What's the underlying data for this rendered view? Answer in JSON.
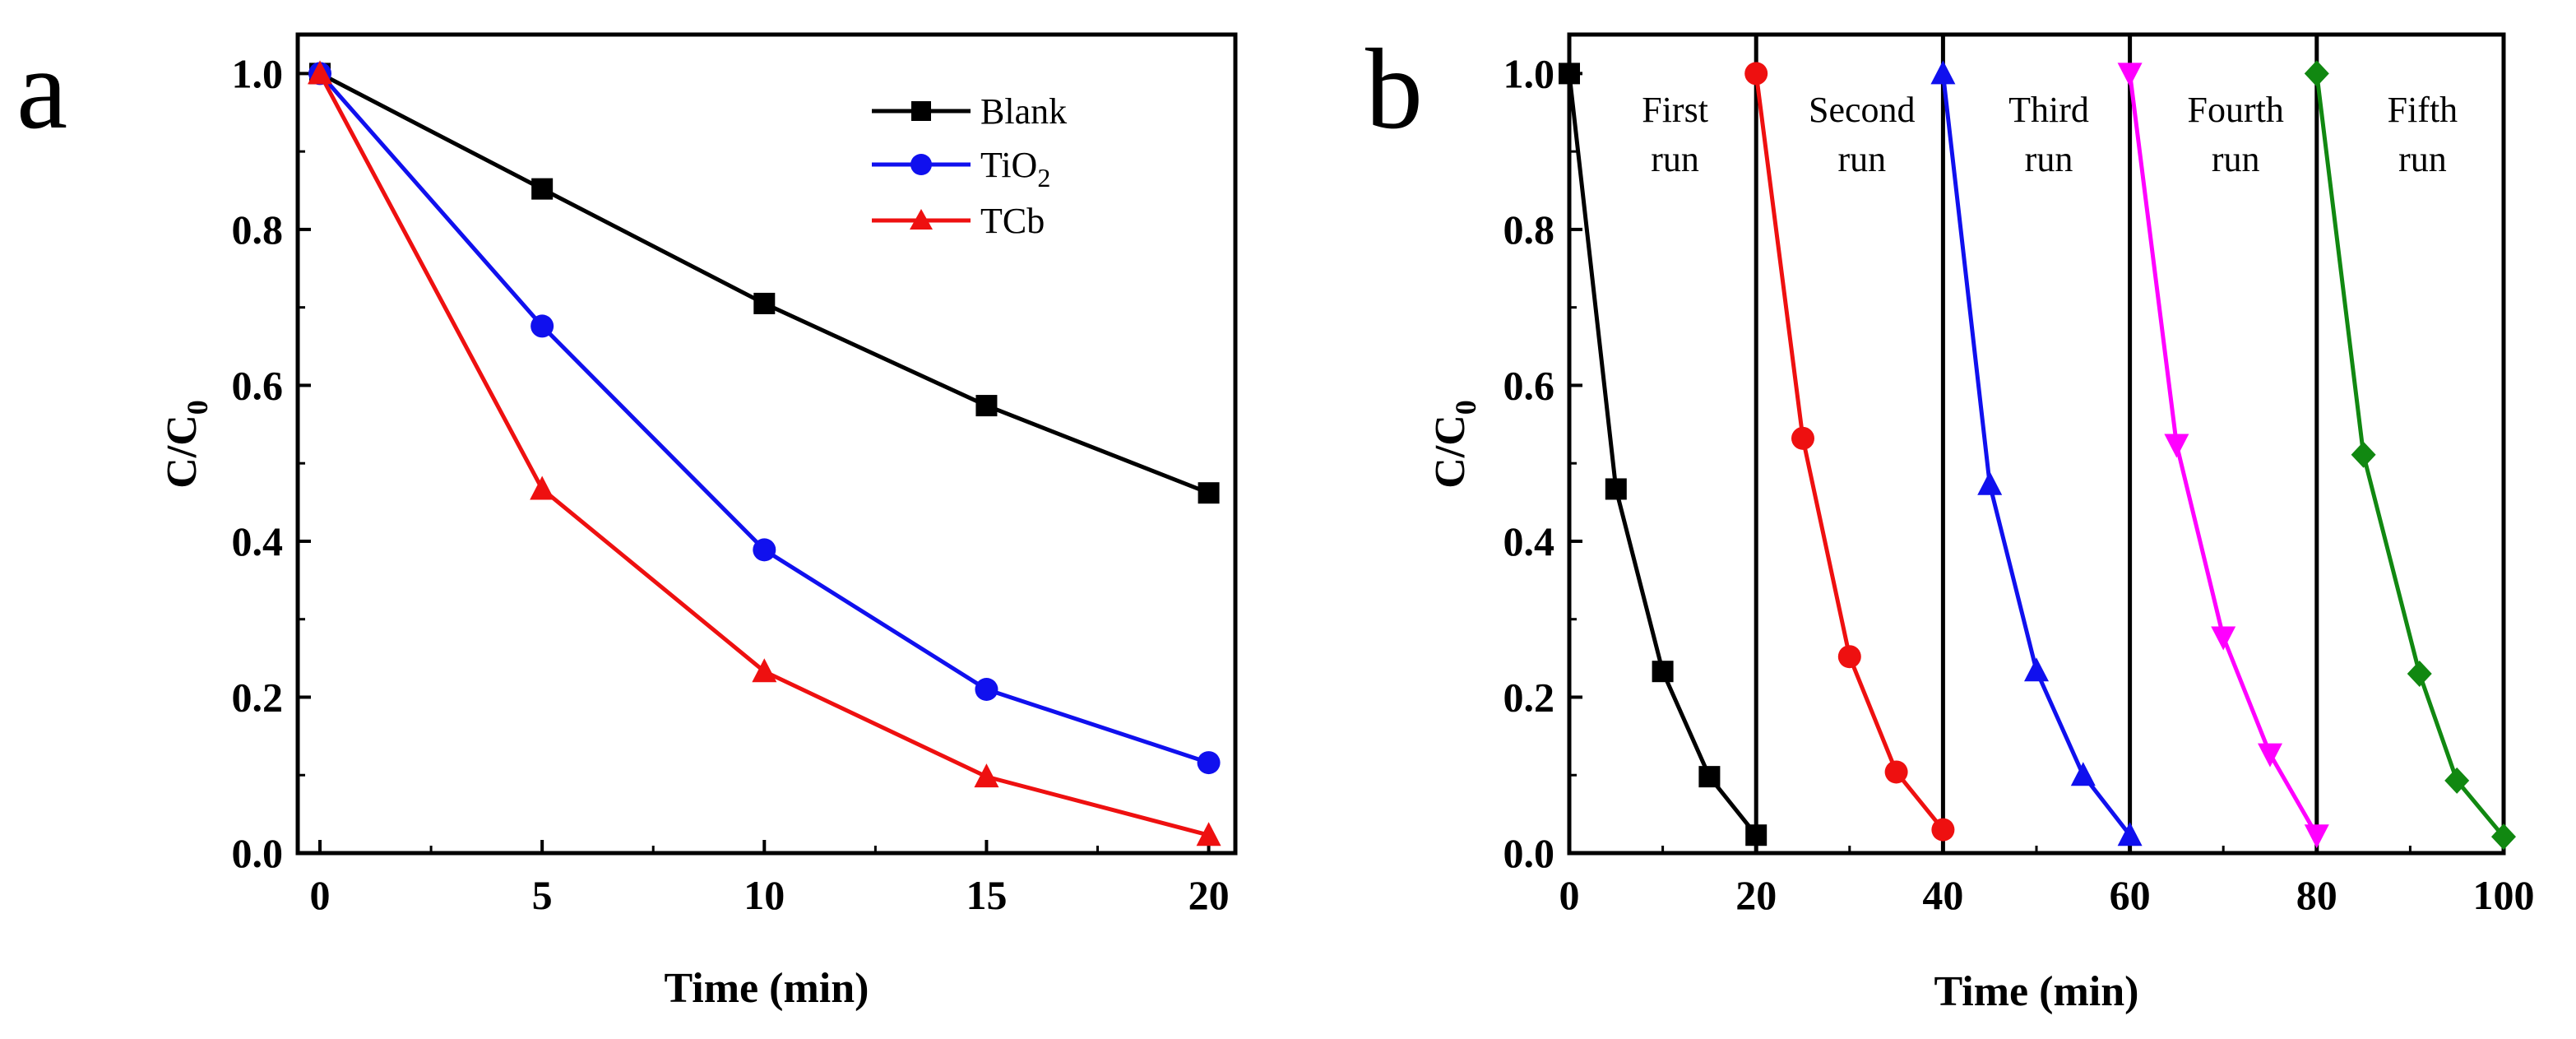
{
  "chart_data": [
    {
      "panel_label": "a",
      "type": "line",
      "xlabel": "Time (min)",
      "ylabel": "C/C0",
      "ylabel_main": "C/C",
      "ylabel_sub": "0",
      "xlim": [
        -0.5,
        20.6
      ],
      "ylim": [
        0.0,
        1.05
      ],
      "xticks": [
        0,
        5,
        10,
        15,
        20
      ],
      "xtick_labels": [
        "0",
        "5",
        "10",
        "15",
        "20"
      ],
      "yticks": [
        0.0,
        0.2,
        0.4,
        0.6,
        0.8,
        1.0
      ],
      "ytick_labels": [
        "0.0",
        "0.2",
        "0.4",
        "0.6",
        "0.8",
        "1.0"
      ],
      "legend_position": "top-right",
      "series": [
        {
          "name": "Blank",
          "label_main": "Blank",
          "label_sub": "",
          "color": "#000000",
          "marker": "square",
          "x": [
            0,
            5,
            10,
            15,
            20
          ],
          "y": [
            1.0,
            0.852,
            0.705,
            0.574,
            0.462
          ]
        },
        {
          "name": "TiO2",
          "label_main": "TiO",
          "label_sub": "2",
          "color": "#1010ee",
          "marker": "circle",
          "x": [
            0,
            5,
            10,
            15,
            20
          ],
          "y": [
            1.0,
            0.676,
            0.389,
            0.21,
            0.116
          ]
        },
        {
          "name": "TCb",
          "label_main": "TCb",
          "label_sub": "",
          "color": "#ee1010",
          "marker": "triangle-up",
          "x": [
            0,
            5,
            10,
            15,
            20
          ],
          "y": [
            1.0,
            0.467,
            0.233,
            0.098,
            0.023
          ]
        }
      ]
    },
    {
      "panel_label": "b",
      "type": "line",
      "xlabel": "Time (min)",
      "ylabel": "C/C0",
      "ylabel_main": "C/C",
      "ylabel_sub": "0",
      "xlim": [
        0,
        100
      ],
      "ylim": [
        0.0,
        1.05
      ],
      "xticks": [
        0,
        20,
        40,
        60,
        80,
        100
      ],
      "xtick_labels": [
        "0",
        "20",
        "40",
        "60",
        "80",
        "100"
      ],
      "yticks": [
        0.0,
        0.2,
        0.4,
        0.6,
        0.8,
        1.0
      ],
      "ytick_labels": [
        "0.0",
        "0.2",
        "0.4",
        "0.6",
        "0.8",
        "1.0"
      ],
      "separators_x": [
        20,
        40,
        60,
        80
      ],
      "series": [
        {
          "name": "First run",
          "label_lines": [
            "First",
            "run"
          ],
          "label_x": 10,
          "color": "#000000",
          "marker": "square",
          "x": [
            0,
            5,
            10,
            15,
            20
          ],
          "y": [
            1.0,
            0.467,
            0.233,
            0.098,
            0.023
          ]
        },
        {
          "name": "Second run",
          "label_lines": [
            "Second",
            "run"
          ],
          "label_x": 30,
          "color": "#ee1010",
          "marker": "circle",
          "x": [
            20,
            25,
            30,
            35,
            40
          ],
          "y": [
            1.0,
            0.532,
            0.252,
            0.104,
            0.03
          ]
        },
        {
          "name": "Third run",
          "label_lines": [
            "Third",
            "run"
          ],
          "label_x": 50,
          "color": "#1010ee",
          "marker": "triangle-up",
          "x": [
            40,
            45,
            50,
            55,
            60
          ],
          "y": [
            1.0,
            0.473,
            0.234,
            0.1,
            0.023
          ]
        },
        {
          "name": "Fourth run",
          "label_lines": [
            "Fourth",
            "run"
          ],
          "label_x": 70,
          "color": "#ff00ff",
          "marker": "triangle-down",
          "x": [
            60,
            65,
            70,
            75,
            80
          ],
          "y": [
            1.0,
            0.524,
            0.277,
            0.127,
            0.023
          ]
        },
        {
          "name": "Fifth run",
          "label_lines": [
            "Fifth",
            "run"
          ],
          "label_x": 90,
          "color": "#118811",
          "marker": "diamond",
          "x": [
            80,
            85,
            91,
            95,
            100
          ],
          "y": [
            1.0,
            0.511,
            0.23,
            0.093,
            0.021
          ]
        }
      ]
    }
  ]
}
